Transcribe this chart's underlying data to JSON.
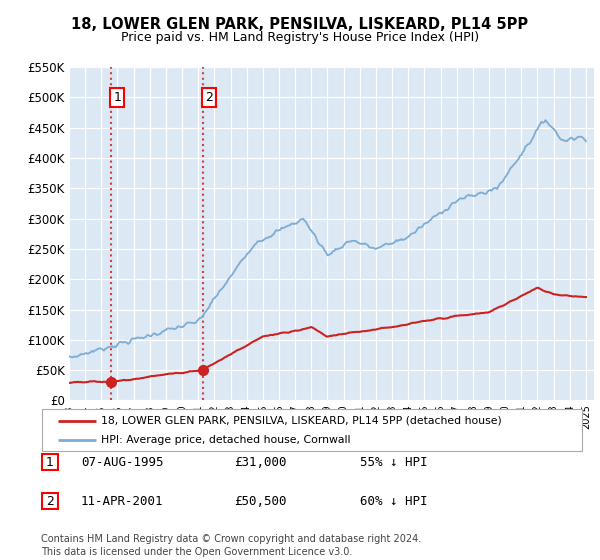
{
  "title_line1": "18, LOWER GLEN PARK, PENSILVA, LISKEARD, PL14 5PP",
  "title_line2": "Price paid vs. HM Land Registry's House Price Index (HPI)",
  "ylim": [
    0,
    550000
  ],
  "yticks": [
    0,
    50000,
    100000,
    150000,
    200000,
    250000,
    300000,
    350000,
    400000,
    450000,
    500000,
    550000
  ],
  "ytick_labels": [
    "£0",
    "£50K",
    "£100K",
    "£150K",
    "£200K",
    "£250K",
    "£300K",
    "£350K",
    "£400K",
    "£450K",
    "£500K",
    "£550K"
  ],
  "hpi_color": "#7dadd4",
  "price_color": "#cc2222",
  "marker_color": "#cc2222",
  "sale1_date": 1995.6,
  "sale1_price": 31000,
  "sale2_date": 2001.27,
  "sale2_price": 50500,
  "vline_color": "#cc2222",
  "bg_color": "#f0f5fa",
  "bg_hatch_color": "#dce8f3",
  "region_bg": "#e8f0f8",
  "legend_label1": "18, LOWER GLEN PARK, PENSILVA, LISKEARD, PL14 5PP (detached house)",
  "legend_label2": "HPI: Average price, detached house, Cornwall",
  "table_entries": [
    {
      "num": "1",
      "date": "07-AUG-1995",
      "price": "£31,000",
      "pct": "55% ↓ HPI"
    },
    {
      "num": "2",
      "date": "11-APR-2001",
      "price": "£50,500",
      "pct": "60% ↓ HPI"
    }
  ],
  "footnote": "Contains HM Land Registry data © Crown copyright and database right 2024.\nThis data is licensed under the Open Government Licence v3.0.",
  "figsize": [
    6.0,
    5.6
  ],
  "dpi": 100
}
